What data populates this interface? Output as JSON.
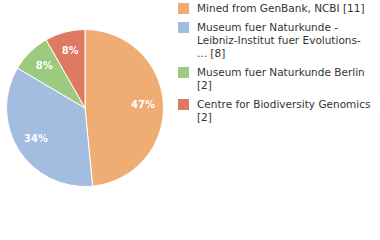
{
  "chart_data": {
    "type": "pie",
    "categories": [
      "Mined from GenBank, NCBI [11]",
      "Museum fuer Naturkunde - Leibniz-Institut fuer Evolutions- ... [8]",
      "Museum fuer Naturkunde Berlin [2]",
      "Centre for Biodiversity Genomics [2]"
    ],
    "values": [
      47,
      34,
      8,
      8
    ],
    "value_labels": [
      "47%",
      "34%",
      "8%",
      "8%"
    ],
    "colors": [
      "#efad74",
      "#a2bde0",
      "#9ccb7f",
      "#de7a62"
    ],
    "data_labels": true,
    "legend": "right"
  }
}
